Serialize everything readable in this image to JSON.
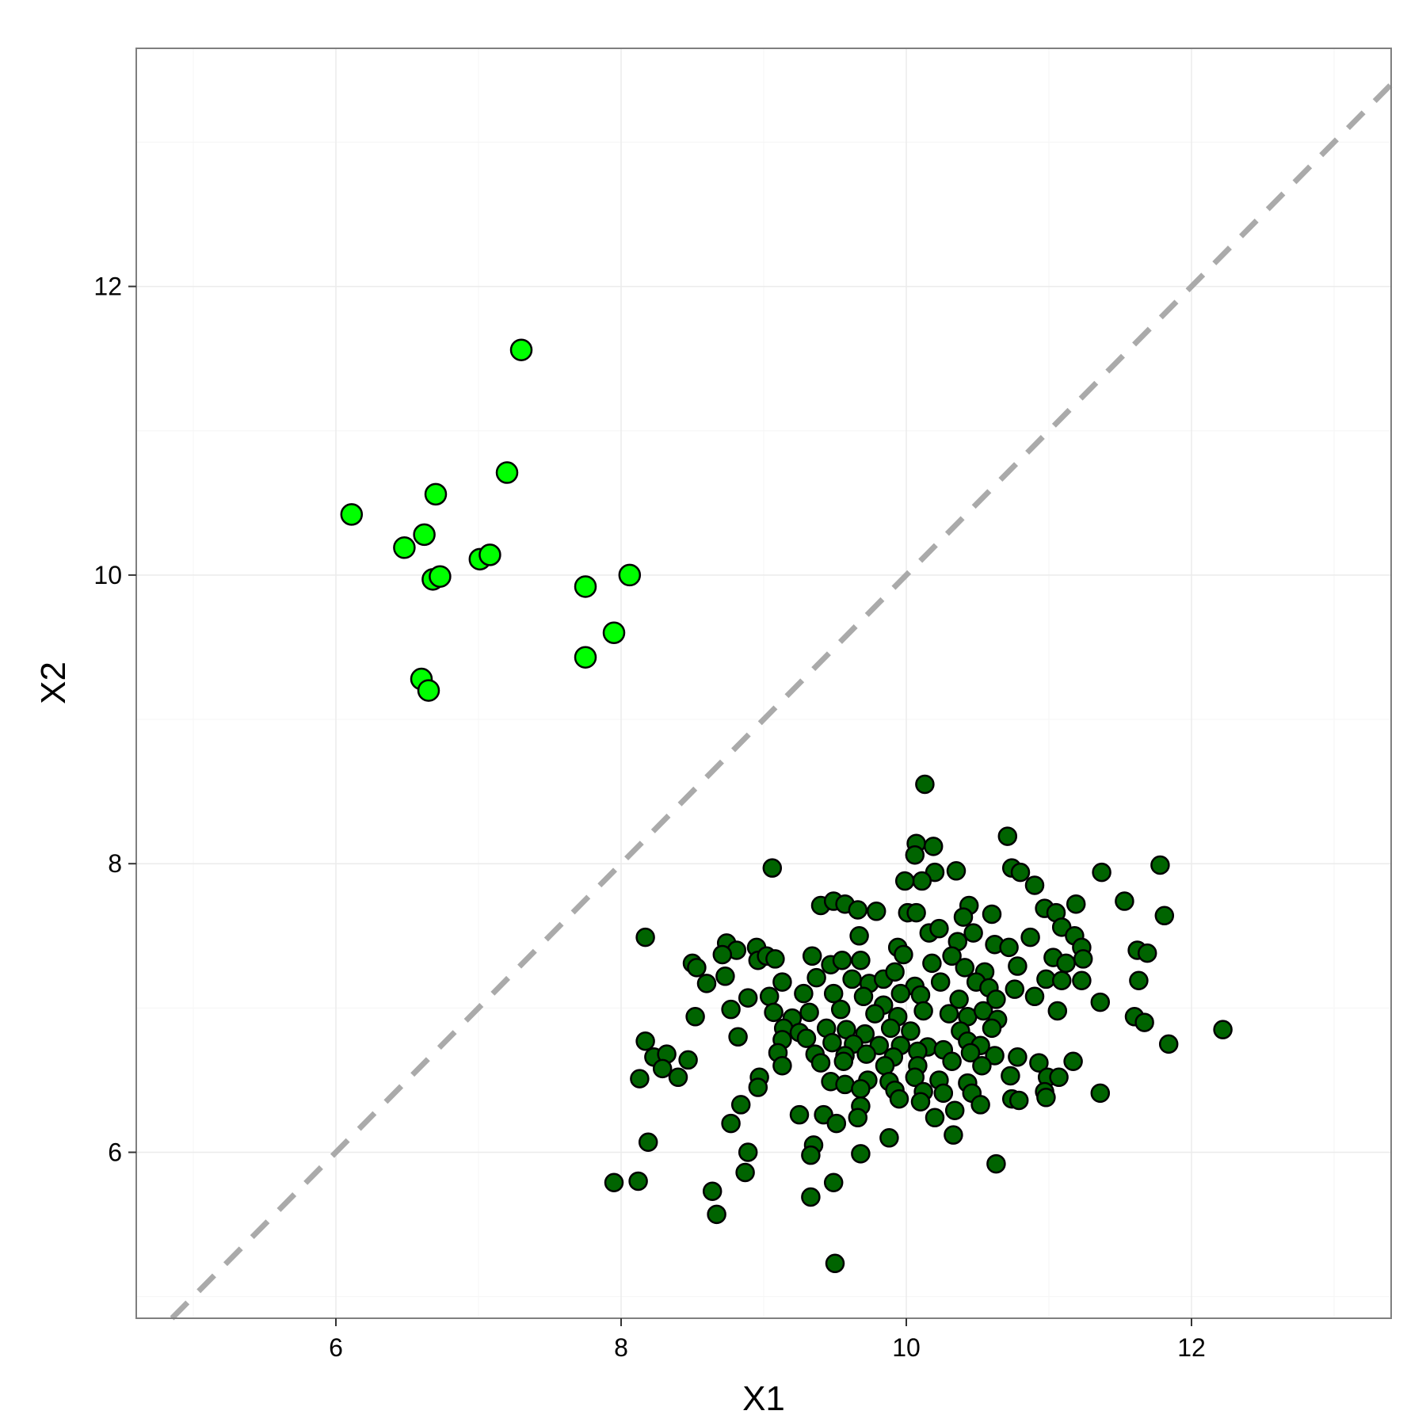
{
  "chart_data": {
    "type": "scatter",
    "xlabel": "X1",
    "ylabel": "X2",
    "xlim": [
      4.6,
      13.4
    ],
    "ylim": [
      4.85,
      13.65
    ],
    "x_ticks": [
      6,
      8,
      10,
      12
    ],
    "y_ticks": [
      6,
      8,
      10,
      12
    ],
    "grid": true,
    "reference_line": {
      "type": "identity",
      "slope": 1,
      "intercept": 0,
      "style": "dashed",
      "color": "#aaaaaa"
    },
    "colors": {
      "panel_border": "#7f7f7f",
      "grid_major": "#ebebeb",
      "grid_minor": "#f5f5f5",
      "point_outline": "#000000"
    },
    "series": [
      {
        "color": "#00ff00",
        "points": [
          [
            6.11,
            10.42
          ],
          [
            6.48,
            10.19
          ],
          [
            6.62,
            10.28
          ],
          [
            6.68,
            9.97
          ],
          [
            6.73,
            9.99
          ],
          [
            6.7,
            10.56
          ],
          [
            6.6,
            9.28
          ],
          [
            6.65,
            9.2
          ],
          [
            7.01,
            10.11
          ],
          [
            7.08,
            10.14
          ],
          [
            7.2,
            10.71
          ],
          [
            7.3,
            11.56
          ],
          [
            7.75,
            9.92
          ],
          [
            7.75,
            9.43
          ],
          [
            7.95,
            9.6
          ],
          [
            8.06,
            10.0
          ]
        ]
      },
      {
        "color": "#006400",
        "points": [
          [
            10.13,
            8.55
          ],
          [
            10.07,
            8.14
          ],
          [
            10.06,
            8.06
          ],
          [
            10.19,
            8.12
          ],
          [
            10.2,
            7.94
          ],
          [
            10.11,
            7.88
          ],
          [
            9.99,
            7.88
          ],
          [
            10.35,
            7.95
          ],
          [
            10.71,
            8.19
          ],
          [
            9.06,
            7.97
          ],
          [
            11.78,
            7.99
          ],
          [
            11.37,
            7.94
          ],
          [
            10.9,
            7.85
          ],
          [
            10.74,
            7.97
          ],
          [
            10.8,
            7.94
          ],
          [
            9.4,
            7.71
          ],
          [
            9.49,
            7.74
          ],
          [
            9.57,
            7.72
          ],
          [
            9.66,
            7.68
          ],
          [
            9.79,
            7.67
          ],
          [
            10.01,
            7.66
          ],
          [
            10.07,
            7.66
          ],
          [
            10.44,
            7.71
          ],
          [
            10.4,
            7.63
          ],
          [
            10.6,
            7.65
          ],
          [
            10.97,
            7.69
          ],
          [
            11.05,
            7.66
          ],
          [
            11.19,
            7.72
          ],
          [
            11.53,
            7.74
          ],
          [
            11.81,
            7.64
          ],
          [
            8.17,
            7.49
          ],
          [
            8.74,
            7.45
          ],
          [
            8.81,
            7.4
          ],
          [
            8.95,
            7.42
          ],
          [
            9.67,
            7.5
          ],
          [
            10.16,
            7.52
          ],
          [
            10.23,
            7.55
          ],
          [
            10.47,
            7.52
          ],
          [
            10.36,
            7.46
          ],
          [
            10.62,
            7.44
          ],
          [
            10.72,
            7.42
          ],
          [
            10.87,
            7.49
          ],
          [
            11.09,
            7.56
          ],
          [
            11.18,
            7.5
          ],
          [
            11.23,
            7.42
          ],
          [
            11.62,
            7.4
          ],
          [
            11.69,
            7.38
          ],
          [
            8.5,
            7.31
          ],
          [
            8.53,
            7.28
          ],
          [
            8.71,
            7.37
          ],
          [
            8.96,
            7.33
          ],
          [
            9.02,
            7.36
          ],
          [
            9.08,
            7.34
          ],
          [
            9.34,
            7.36
          ],
          [
            9.47,
            7.3
          ],
          [
            9.55,
            7.33
          ],
          [
            9.68,
            7.33
          ],
          [
            9.94,
            7.42
          ],
          [
            9.98,
            7.37
          ],
          [
            10.18,
            7.31
          ],
          [
            10.32,
            7.36
          ],
          [
            10.41,
            7.28
          ],
          [
            10.55,
            7.25
          ],
          [
            10.78,
            7.29
          ],
          [
            11.03,
            7.35
          ],
          [
            11.12,
            7.31
          ],
          [
            11.24,
            7.34
          ],
          [
            8.6,
            7.17
          ],
          [
            8.73,
            7.22
          ],
          [
            9.13,
            7.18
          ],
          [
            9.37,
            7.21
          ],
          [
            9.62,
            7.2
          ],
          [
            9.74,
            7.17
          ],
          [
            9.84,
            7.2
          ],
          [
            9.92,
            7.25
          ],
          [
            10.06,
            7.15
          ],
          [
            10.24,
            7.18
          ],
          [
            10.49,
            7.18
          ],
          [
            10.58,
            7.14
          ],
          [
            10.98,
            7.2
          ],
          [
            11.09,
            7.19
          ],
          [
            11.23,
            7.19
          ],
          [
            11.63,
            7.19
          ],
          [
            8.89,
            7.07
          ],
          [
            9.04,
            7.08
          ],
          [
            9.28,
            7.1
          ],
          [
            9.49,
            7.1
          ],
          [
            9.7,
            7.08
          ],
          [
            9.84,
            7.02
          ],
          [
            9.96,
            7.1
          ],
          [
            10.1,
            7.09
          ],
          [
            10.37,
            7.06
          ],
          [
            10.63,
            7.06
          ],
          [
            10.76,
            7.13
          ],
          [
            10.9,
            7.08
          ],
          [
            11.36,
            7.04
          ],
          [
            8.77,
            6.99
          ],
          [
            9.07,
            6.97
          ],
          [
            9.2,
            6.93
          ],
          [
            9.32,
            6.97
          ],
          [
            9.54,
            6.99
          ],
          [
            9.78,
            6.96
          ],
          [
            9.94,
            6.94
          ],
          [
            10.12,
            6.98
          ],
          [
            10.3,
            6.96
          ],
          [
            10.43,
            6.94
          ],
          [
            10.54,
            6.98
          ],
          [
            10.64,
            6.92
          ],
          [
            11.06,
            6.98
          ],
          [
            11.6,
            6.94
          ],
          [
            11.67,
            6.9
          ],
          [
            8.52,
            6.94
          ],
          [
            9.14,
            6.86
          ],
          [
            9.25,
            6.83
          ],
          [
            9.44,
            6.86
          ],
          [
            9.58,
            6.85
          ],
          [
            9.71,
            6.82
          ],
          [
            9.89,
            6.86
          ],
          [
            10.03,
            6.84
          ],
          [
            10.38,
            6.84
          ],
          [
            10.6,
            6.86
          ],
          [
            12.22,
            6.85
          ],
          [
            8.82,
            6.8
          ],
          [
            9.13,
            6.78
          ],
          [
            9.3,
            6.79
          ],
          [
            9.48,
            6.76
          ],
          [
            9.63,
            6.75
          ],
          [
            9.81,
            6.74
          ],
          [
            9.96,
            6.74
          ],
          [
            10.15,
            6.73
          ],
          [
            10.43,
            6.77
          ],
          [
            10.52,
            6.74
          ],
          [
            8.17,
            6.77
          ],
          [
            11.84,
            6.75
          ],
          [
            9.1,
            6.69
          ],
          [
            9.36,
            6.68
          ],
          [
            9.57,
            6.67
          ],
          [
            9.72,
            6.68
          ],
          [
            9.91,
            6.66
          ],
          [
            10.08,
            6.7
          ],
          [
            10.26,
            6.71
          ],
          [
            10.45,
            6.69
          ],
          [
            10.62,
            6.67
          ],
          [
            10.78,
            6.66
          ],
          [
            8.23,
            6.66
          ],
          [
            8.32,
            6.68
          ],
          [
            8.47,
            6.64
          ],
          [
            9.13,
            6.6
          ],
          [
            9.4,
            6.62
          ],
          [
            9.56,
            6.63
          ],
          [
            9.85,
            6.6
          ],
          [
            10.08,
            6.6
          ],
          [
            10.32,
            6.63
          ],
          [
            10.53,
            6.6
          ],
          [
            10.93,
            6.62
          ],
          [
            11.17,
            6.63
          ],
          [
            8.29,
            6.58
          ],
          [
            8.4,
            6.52
          ],
          [
            8.13,
            6.51
          ],
          [
            8.97,
            6.52
          ],
          [
            9.47,
            6.49
          ],
          [
            9.57,
            6.47
          ],
          [
            9.73,
            6.5
          ],
          [
            9.88,
            6.49
          ],
          [
            10.06,
            6.52
          ],
          [
            10.23,
            6.5
          ],
          [
            10.43,
            6.48
          ],
          [
            10.73,
            6.53
          ],
          [
            10.99,
            6.52
          ],
          [
            11.07,
            6.52
          ],
          [
            8.96,
            6.45
          ],
          [
            9.68,
            6.44
          ],
          [
            9.92,
            6.43
          ],
          [
            10.12,
            6.42
          ],
          [
            10.26,
            6.41
          ],
          [
            10.46,
            6.41
          ],
          [
            10.97,
            6.42
          ],
          [
            11.36,
            6.41
          ],
          [
            10.74,
            6.37
          ],
          [
            10.79,
            6.36
          ],
          [
            10.98,
            6.38
          ],
          [
            9.68,
            6.32
          ],
          [
            9.95,
            6.37
          ],
          [
            10.1,
            6.35
          ],
          [
            10.34,
            6.29
          ],
          [
            10.52,
            6.33
          ],
          [
            10.2,
            6.24
          ],
          [
            8.84,
            6.33
          ],
          [
            9.25,
            6.26
          ],
          [
            9.42,
            6.26
          ],
          [
            9.66,
            6.24
          ],
          [
            8.77,
            6.2
          ],
          [
            9.51,
            6.2
          ],
          [
            10.33,
            6.12
          ],
          [
            9.88,
            6.1
          ],
          [
            8.19,
            6.07
          ],
          [
            9.35,
            6.05
          ],
          [
            8.89,
            6.0
          ],
          [
            9.33,
            5.98
          ],
          [
            9.68,
            5.99
          ],
          [
            10.63,
            5.92
          ],
          [
            8.87,
            5.86
          ],
          [
            7.95,
            5.79
          ],
          [
            8.12,
            5.8
          ],
          [
            9.49,
            5.79
          ],
          [
            8.64,
            5.73
          ],
          [
            9.33,
            5.69
          ],
          [
            8.67,
            5.57
          ],
          [
            9.5,
            5.23
          ]
        ]
      }
    ]
  }
}
